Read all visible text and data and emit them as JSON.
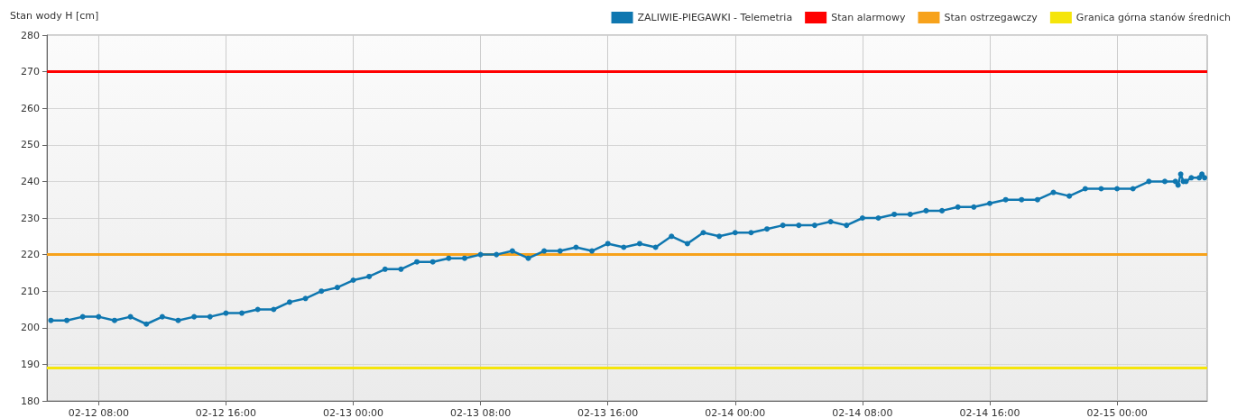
{
  "chart_data": {
    "type": "line",
    "ylabel": "Stan wody H [cm]",
    "x": [
      "--02-12T05:00",
      "--02-12T06:00",
      "--02-12T07:00",
      "--02-12T08:00",
      "--02-12T09:00",
      "--02-12T10:00",
      "--02-12T11:00",
      "--02-12T12:00",
      "--02-12T13:00",
      "--02-12T14:00",
      "--02-12T15:00",
      "--02-12T16:00",
      "--02-12T17:00",
      "--02-12T18:00",
      "--02-12T19:00",
      "--02-12T20:00",
      "--02-12T21:00",
      "--02-12T22:00",
      "--02-12T23:00",
      "--02-13T00:00",
      "--02-13T01:00",
      "--02-13T02:00",
      "--02-13T03:00",
      "--02-13T04:00",
      "--02-13T05:00",
      "--02-13T06:00",
      "--02-13T07:00",
      "--02-13T08:00",
      "--02-13T09:00",
      "--02-13T10:00",
      "--02-13T11:00",
      "--02-13T12:00",
      "--02-13T13:00",
      "--02-13T14:00",
      "--02-13T15:00",
      "--02-13T16:00",
      "--02-13T17:00",
      "--02-13T18:00",
      "--02-13T19:00",
      "--02-13T20:00",
      "--02-13T21:00",
      "--02-13T22:00",
      "--02-13T23:00",
      "--02-14T00:00",
      "--02-14T01:00",
      "--02-14T02:00",
      "--02-14T03:00",
      "--02-14T04:00",
      "--02-14T05:00",
      "--02-14T06:00",
      "--02-14T07:00",
      "--02-14T08:00",
      "--02-14T09:00",
      "--02-14T10:00",
      "--02-14T11:00",
      "--02-14T12:00",
      "--02-14T13:00",
      "--02-14T14:00",
      "--02-14T15:00",
      "--02-14T16:00",
      "--02-14T17:00",
      "--02-14T18:00",
      "--02-14T19:00",
      "--02-14T20:00",
      "--02-14T21:00",
      "--02-14T22:00",
      "--02-14T23:00",
      "--02-15T00:00",
      "--02-15T01:00",
      "--02-15T02:00",
      "--02-15T03:00",
      "--02-15T03:40",
      "--02-15T03:50",
      "--02-15T04:00",
      "--02-15T04:10",
      "--02-15T04:20",
      "--02-15T04:40",
      "--02-15T05:10",
      "--02-15T05:20",
      "--02-15T05:30"
    ],
    "series": [
      {
        "name": "ZALIWIE-PIEGAWKI - Telemetria",
        "color": "#0f77b0",
        "values": [
          202,
          202,
          203,
          203,
          202,
          203,
          201,
          203,
          202,
          203,
          203,
          204,
          204,
          205,
          205,
          207,
          208,
          210,
          211,
          213,
          214,
          216,
          216,
          218,
          218,
          219,
          219,
          220,
          220,
          221,
          219,
          221,
          221,
          222,
          221,
          223,
          222,
          223,
          222,
          225,
          223,
          226,
          225,
          226,
          226,
          227,
          228,
          228,
          228,
          229,
          228,
          230,
          230,
          231,
          231,
          232,
          232,
          233,
          233,
          234,
          235,
          235,
          235,
          237,
          236,
          238,
          238,
          238,
          238,
          240,
          240,
          240,
          239,
          242,
          240,
          240,
          241,
          241,
          242,
          241
        ]
      }
    ],
    "xlim": [
      "--02-12T04:45",
      "--02-15T05:40"
    ],
    "xticks": [
      {
        "value": "--02-12T08:00",
        "label": "02-12 08:00"
      },
      {
        "value": "--02-12T16:00",
        "label": "02-12 16:00"
      },
      {
        "value": "--02-13T00:00",
        "label": "02-13 00:00"
      },
      {
        "value": "--02-13T08:00",
        "label": "02-13 08:00"
      },
      {
        "value": "--02-13T16:00",
        "label": "02-13 16:00"
      },
      {
        "value": "--02-14T00:00",
        "label": "02-14 00:00"
      },
      {
        "value": "--02-14T08:00",
        "label": "02-14 08:00"
      },
      {
        "value": "--02-14T16:00",
        "label": "02-14 16:00"
      },
      {
        "value": "--02-15T00:00",
        "label": "02-15 00:00"
      }
    ],
    "ylim": [
      180,
      280
    ],
    "yticks": [
      180,
      190,
      200,
      210,
      220,
      230,
      240,
      250,
      260,
      270,
      280
    ],
    "ref_lines": [
      {
        "axis": "y",
        "value": 270,
        "label": "Stan alarmowy",
        "color": "#ff0000"
      },
      {
        "axis": "y",
        "value": 220,
        "label": "Stan ostrzegawczy",
        "color": "#f7a21b"
      },
      {
        "axis": "y",
        "value": 189,
        "label": "Granica górna stanów średnich",
        "color": "#f5e50a"
      }
    ],
    "grid": true,
    "legend": "top right",
    "marker": "circle",
    "line_style": "solid"
  }
}
